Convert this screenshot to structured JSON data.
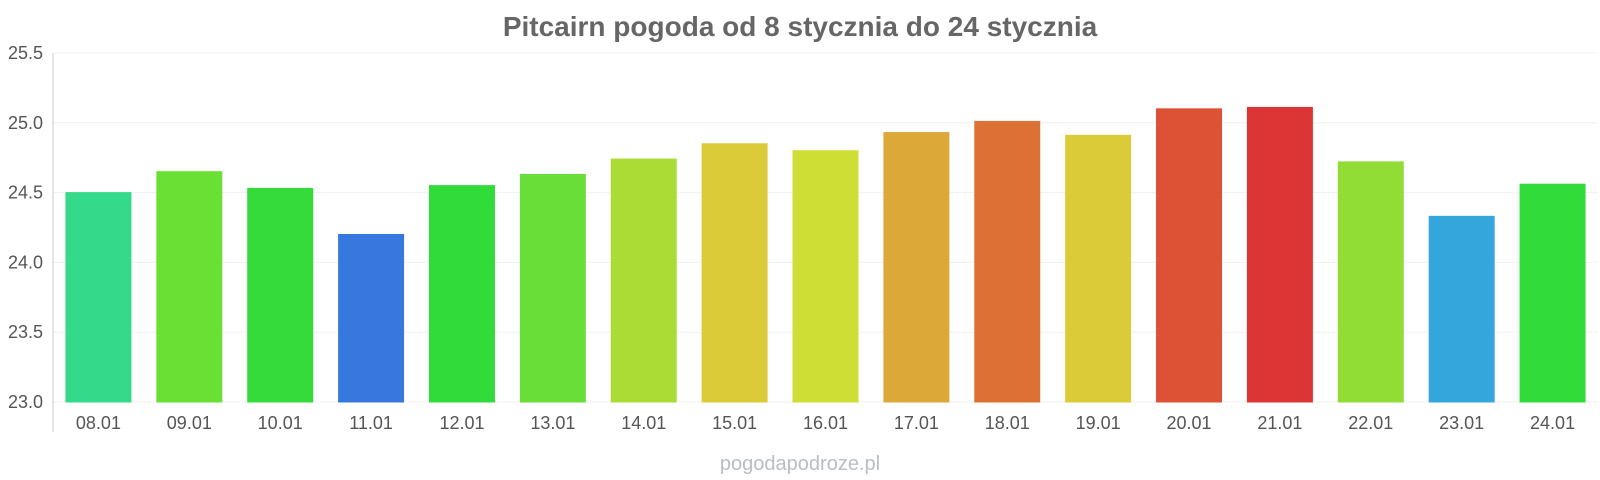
{
  "chart_data": {
    "type": "bar",
    "title": "Pitcairn pogoda od 8 stycznia do 24 stycznia",
    "categories": [
      "08.01",
      "09.01",
      "10.01",
      "11.01",
      "12.01",
      "13.01",
      "14.01",
      "15.01",
      "16.01",
      "17.01",
      "18.01",
      "19.01",
      "20.01",
      "21.01",
      "22.01",
      "23.01",
      "24.01"
    ],
    "series": [
      {
        "values": [
          24.5,
          24.65,
          24.53,
          24.2,
          24.55,
          24.63,
          24.74,
          24.85,
          24.8,
          24.93,
          25.01,
          24.91,
          25.1,
          25.11,
          24.72,
          24.33,
          24.56
        ]
      }
    ],
    "colors": [
      "#35d98a",
      "#6ae035",
      "#35db3a",
      "#3678de",
      "#30db3a",
      "#6ade38",
      "#aadc35",
      "#dccb38",
      "#cede35",
      "#dca838",
      "#dd7135",
      "#dccb38",
      "#dd5135",
      "#dd3535",
      "#91dc35",
      "#35a6dc",
      "#30db3a"
    ],
    "yticks": [
      23.0,
      23.5,
      24.0,
      24.5,
      25.0,
      25.5
    ],
    "ytick_labels": [
      "23.0",
      "23.5",
      "24.0",
      "24.5",
      "25.0",
      "25.5"
    ],
    "ylim": [
      23.0,
      25.5
    ],
    "grid": true,
    "legend": "none",
    "xlabel": "",
    "ylabel": ""
  },
  "watermark": "pogodapodroze.pl"
}
